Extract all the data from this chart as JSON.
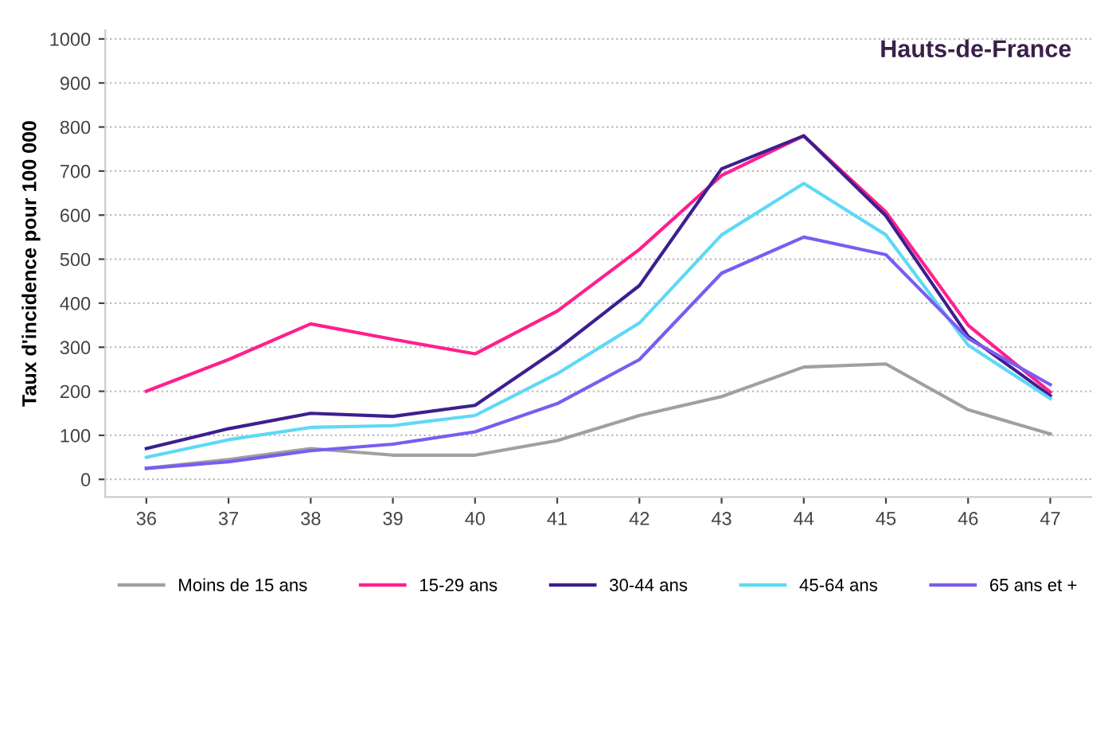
{
  "chart_data": {
    "type": "line",
    "title": "Hauts-de-France",
    "ylabel": "Taux d'incidence pour 100 000",
    "x": [
      36,
      37,
      38,
      39,
      40,
      41,
      42,
      43,
      44,
      45,
      46,
      47
    ],
    "xlim": [
      35.5,
      47.5
    ],
    "xticks": [
      36,
      37,
      38,
      39,
      40,
      41,
      42,
      43,
      44,
      45,
      46,
      47
    ],
    "ylim": [
      -40,
      1020
    ],
    "yticks": [
      0,
      100,
      200,
      300,
      400,
      500,
      600,
      700,
      800,
      900,
      1000
    ],
    "grid": "y",
    "legend": "bottom",
    "marker": "none",
    "line_style": "solid",
    "series": [
      {
        "name": "Moins de 15 ans",
        "color": "#a0a0a0",
        "values": [
          25,
          45,
          70,
          55,
          55,
          88,
          145,
          188,
          255,
          262,
          158,
          103
        ]
      },
      {
        "name": "15-29 ans",
        "color": "#ff1f8e",
        "values": [
          200,
          272,
          353,
          318,
          285,
          382,
          522,
          690,
          780,
          607,
          350,
          198
        ]
      },
      {
        "name": "30-44 ans",
        "color": "#3d1f8f",
        "values": [
          70,
          115,
          150,
          143,
          168,
          295,
          440,
          705,
          780,
          598,
          325,
          190
        ]
      },
      {
        "name": "45-64 ans",
        "color": "#5fd8f5",
        "values": [
          50,
          90,
          118,
          122,
          145,
          240,
          355,
          555,
          672,
          555,
          305,
          183
        ]
      },
      {
        "name": "65 ans et +",
        "color": "#7b5cf0",
        "values": [
          25,
          40,
          65,
          80,
          108,
          172,
          272,
          468,
          550,
          510,
          320,
          215
        ]
      }
    ]
  }
}
